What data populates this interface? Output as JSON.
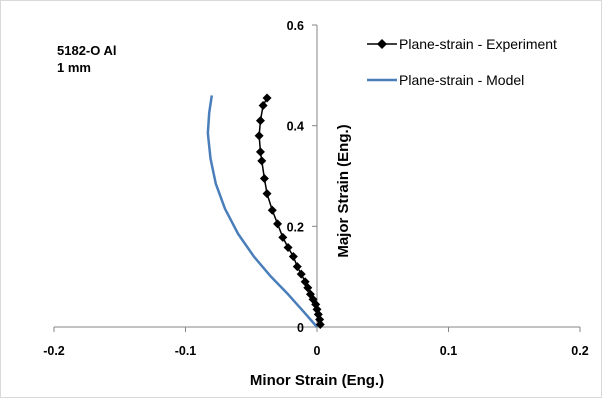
{
  "chart_data": {
    "type": "line",
    "xlabel": "Minor Strain (Eng.)",
    "ylabel": "Major  Strain (Eng.)",
    "xlim": [
      -0.2,
      0.2
    ],
    "ylim": [
      0,
      0.6
    ],
    "xticks": [
      -0.2,
      -0.1,
      0,
      0.1,
      0.2
    ],
    "xtick_labels": [
      "-0.2",
      "-0.1",
      "0",
      "0.1",
      "0.2"
    ],
    "yticks": [
      0,
      0.2,
      0.4,
      0.6
    ],
    "ytick_labels": [
      "0",
      "0.2",
      "0.4",
      "0.6"
    ],
    "grid": false,
    "legend_position": "top-right",
    "annotation": [
      "5182-O Al",
      "1 mm"
    ],
    "series": [
      {
        "name": "Plane-strain - Experiment",
        "color": "#000000",
        "marker": "diamond",
        "x": [
          0.0025,
          0.002,
          0.001,
          0.0,
          -0.001,
          -0.003,
          -0.005,
          -0.007,
          -0.009,
          -0.012,
          -0.015,
          -0.018,
          -0.022,
          -0.026,
          -0.03,
          -0.034,
          -0.038,
          -0.04,
          -0.042,
          -0.043,
          -0.044,
          -0.043,
          -0.041,
          -0.038
        ],
        "y": [
          0.005,
          0.015,
          0.025,
          0.035,
          0.045,
          0.055,
          0.065,
          0.078,
          0.09,
          0.105,
          0.12,
          0.14,
          0.158,
          0.178,
          0.205,
          0.232,
          0.265,
          0.295,
          0.33,
          0.348,
          0.38,
          0.41,
          0.44,
          0.455
        ],
        "marker_y": [
          0.0,
          0.0,
          0.0,
          0.0,
          0.0,
          0.0,
          0.0,
          0.0,
          0.0,
          0.0,
          0.0,
          0.0,
          0.0,
          0.0,
          0.0,
          0.0,
          0.0,
          0.0,
          0.0,
          0.0,
          0.0,
          0.0,
          0.0,
          0.0
        ]
      },
      {
        "name": "Plane-strain - Model",
        "color": "#4a7ebb",
        "marker": "none",
        "x": [
          0.0,
          -0.01,
          -0.022,
          -0.035,
          -0.048,
          -0.06,
          -0.07,
          -0.077,
          -0.081,
          -0.083,
          -0.082,
          -0.08
        ],
        "y": [
          0.0,
          0.03,
          0.065,
          0.1,
          0.14,
          0.185,
          0.235,
          0.285,
          0.335,
          0.385,
          0.425,
          0.46
        ]
      }
    ]
  }
}
